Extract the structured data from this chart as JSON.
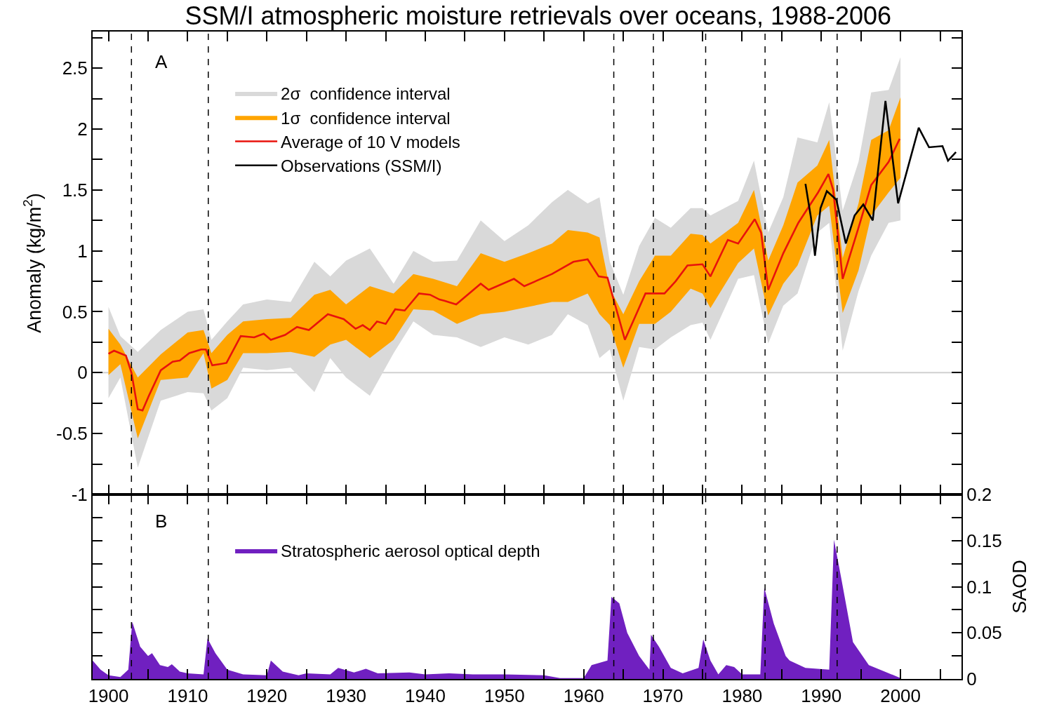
{
  "chart_data": [
    {
      "type": "line",
      "title": "SSM/I atmospheric moisture retrievals over oceans, 1988-2006",
      "ylabel": "Anomaly (kg/m$^{2}$)",
      "annotations": [
        "A"
      ],
      "xlim": [
        1898,
        2007.7
      ],
      "xticks": [
        1900,
        {
          "value": 1905,
          "label": null
        },
        1910,
        {
          "value": 1915,
          "label": null
        },
        1920,
        {
          "value": 1925,
          "label": null
        },
        1930,
        {
          "value": 1935,
          "label": null
        },
        1940,
        {
          "value": 1945,
          "label": null
        },
        1950,
        {
          "value": 1955,
          "label": null
        },
        1960,
        {
          "value": 1965,
          "label": null
        },
        1970,
        {
          "value": 1975,
          "label": null
        },
        1980,
        {
          "value": 1985,
          "label": null
        },
        1990,
        {
          "value": 1995,
          "label": null
        },
        2000,
        {
          "value": 2005,
          "label": null
        }
      ],
      "ylim": [
        -1,
        2.8
      ],
      "yticks": [
        -1,
        {
          "value": -0.75,
          "label": null
        },
        -0.5,
        {
          "value": -0.25,
          "label": null
        },
        0,
        {
          "value": 0.25,
          "label": null
        },
        0.5,
        {
          "value": 0.75,
          "label": null
        },
        1,
        {
          "value": 1.25,
          "label": null
        },
        1.5,
        {
          "value": 1.75,
          "label": null
        },
        2,
        {
          "value": 2.25,
          "label": null
        },
        2.5,
        {
          "value": 2.75,
          "label": null
        }
      ],
      "tick_labels": "y",
      "grid": false,
      "legend": "top left",
      "line_style": "solid",
      "ref_lines": [
        {
          "axis": "y",
          "value": 0,
          "color": "#d0d0d0",
          "line_style": "solid"
        },
        {
          "axis": "x",
          "value": 1902.9,
          "color": "#000000",
          "line_style": "dashed"
        },
        {
          "axis": "x",
          "value": 1912.6,
          "color": "#000000",
          "line_style": "dashed"
        },
        {
          "axis": "x",
          "value": 1963.8,
          "color": "#000000",
          "line_style": "dashed"
        },
        {
          "axis": "x",
          "value": 1968.8,
          "color": "#000000",
          "line_style": "dashed"
        },
        {
          "axis": "x",
          "value": 1975.4,
          "color": "#000000",
          "line_style": "dashed"
        },
        {
          "axis": "x",
          "value": 1982.9,
          "color": "#000000",
          "line_style": "dashed"
        },
        {
          "axis": "x",
          "value": 1992.0,
          "color": "#000000",
          "line_style": "dashed"
        }
      ],
      "series": [
        {
          "name": "2σ  confidence interval",
          "type": "area",
          "color": "#d9d9d9",
          "x": [
            1900,
            1901.5,
            1903.7,
            1906.6,
            1910,
            1912,
            1913,
            1915,
            1917,
            1920,
            1923,
            1926,
            1928,
            1930,
            1933,
            1936,
            1938.5,
            1941,
            1944,
            1947,
            1950,
            1953,
            1956,
            1958,
            1960.5,
            1962,
            1963.3,
            1965,
            1967,
            1969,
            1971,
            1973.5,
            1975,
            1976,
            1979.5,
            1981.5,
            1983.3,
            1985.2,
            1987,
            1989.5,
            1991,
            1992.7,
            1994.7,
            1996.3,
            1998.5,
            2000
          ],
          "values": [
            null,
            null,
            null,
            null,
            null,
            null,
            null,
            null,
            null,
            null,
            null,
            null,
            null,
            null,
            null,
            null,
            null,
            null,
            null,
            null,
            null,
            null,
            null,
            null,
            null,
            null,
            null,
            null,
            null,
            null,
            null,
            null,
            null,
            null,
            null,
            null,
            null,
            null,
            null,
            null,
            null,
            null,
            null,
            null,
            null,
            null
          ],
          "lower": [
            -0.21,
            -0.04,
            -0.78,
            -0.23,
            -0.16,
            -0.17,
            -0.31,
            -0.21,
            0.04,
            0.02,
            0.04,
            -0.16,
            0.12,
            -0.04,
            -0.19,
            0.16,
            0.42,
            0.31,
            0.29,
            0.21,
            0.29,
            0.23,
            0.31,
            0.48,
            0.39,
            0.12,
            0.19,
            -0.23,
            0.21,
            0.19,
            0.29,
            0.39,
            0.41,
            0.27,
            0.77,
            0.8,
            0.24,
            0.55,
            0.65,
            1.15,
            1.23,
            0.18,
            0.67,
            0.96,
            1.23,
            1.25
          ],
          "upper": [
            0.54,
            0.3,
            0.17,
            0.35,
            0.5,
            0.52,
            0.27,
            0.42,
            0.56,
            0.6,
            0.58,
            0.91,
            0.79,
            0.92,
            1.02,
            0.73,
            1.0,
            0.91,
            0.92,
            1.25,
            1.08,
            1.21,
            1.4,
            1.5,
            1.39,
            1.44,
            0.91,
            0.64,
            1.04,
            1.27,
            1.19,
            1.35,
            1.35,
            1.29,
            1.41,
            1.74,
            1.15,
            1.44,
            1.93,
            1.89,
            2.22,
            1.33,
            1.73,
            2.3,
            2.32,
            2.59
          ]
        },
        {
          "name": "1σ  confidence interval",
          "type": "area",
          "color": "#ffa500",
          "x": [
            1900,
            1901.5,
            1903.7,
            1906.6,
            1910,
            1912,
            1913,
            1915,
            1917,
            1920,
            1923,
            1926,
            1928,
            1930,
            1933,
            1936,
            1938.5,
            1941,
            1944,
            1947,
            1950,
            1953,
            1956,
            1958,
            1960.5,
            1962,
            1963.3,
            1965,
            1967,
            1969,
            1971,
            1973.5,
            1975,
            1976,
            1979.5,
            1981.5,
            1983.3,
            1985.2,
            1987,
            1989.5,
            1991,
            1992.7,
            1994.7,
            1996.3,
            1998.5,
            2000
          ],
          "values": [
            null,
            null,
            null,
            null,
            null,
            null,
            null,
            null,
            null,
            null,
            null,
            null,
            null,
            null,
            null,
            null,
            null,
            null,
            null,
            null,
            null,
            null,
            null,
            null,
            null,
            null,
            null,
            null,
            null,
            null,
            null,
            null,
            null,
            null,
            null,
            null,
            null,
            null,
            null,
            null,
            null,
            null,
            null,
            null,
            null,
            null
          ],
          "lower": [
            -0.02,
            0.07,
            -0.54,
            -0.06,
            -0.04,
            0.16,
            -0.13,
            -0.06,
            0.16,
            0.16,
            0.17,
            0.13,
            0.23,
            0.27,
            0.12,
            0.27,
            0.52,
            0.51,
            0.4,
            0.48,
            0.5,
            0.54,
            0.58,
            0.58,
            0.65,
            0.48,
            0.39,
            0.04,
            0.4,
            0.4,
            0.5,
            0.69,
            0.65,
            0.53,
            0.9,
            1.02,
            0.47,
            0.73,
            0.88,
            1.29,
            1.37,
            0.49,
            0.84,
            1.29,
            1.48,
            1.6
          ],
          "upper": [
            0.36,
            0.23,
            -0.04,
            0.15,
            0.33,
            0.35,
            0.16,
            0.31,
            0.42,
            0.44,
            0.45,
            0.64,
            0.68,
            0.56,
            0.71,
            0.65,
            0.81,
            0.77,
            0.71,
            0.98,
            0.91,
            0.98,
            1.06,
            1.17,
            1.15,
            1.11,
            0.69,
            0.48,
            0.75,
            0.96,
            0.96,
            1.14,
            1.13,
            1.06,
            1.23,
            1.5,
            0.92,
            1.21,
            1.56,
            1.7,
            1.91,
            0.94,
            1.39,
            1.91,
            1.99,
            2.26
          ]
        },
        {
          "name": "Average of 10 V models",
          "color": "#e8120c",
          "x": [
            1900,
            1900.7,
            1902.2,
            1902.9,
            1903.7,
            1904.3,
            1905.1,
            1906.6,
            1908.1,
            1909,
            1910.2,
            1911.7,
            1912.3,
            1913.1,
            1914,
            1914.9,
            1916.7,
            1918.4,
            1919.6,
            1920.5,
            1922.3,
            1923.8,
            1925.3,
            1927.7,
            1929.7,
            1931.2,
            1932.1,
            1933,
            1933.9,
            1935,
            1936.2,
            1937.4,
            1939.2,
            1940.6,
            1941.8,
            1942.4,
            1943.9,
            1947,
            1948,
            1951.2,
            1952.5,
            1956,
            1958.7,
            1960.5,
            1961.9,
            1963,
            1964.3,
            1965.2,
            1966.5,
            1967.8,
            1970.2,
            1971.6,
            1973.1,
            1975,
            1976,
            1978.2,
            1979.5,
            1981.6,
            1982.4,
            1983.3,
            1985.2,
            1987.1,
            1989.6,
            1990.9,
            1991.5,
            1992.7,
            1994.7,
            1996.3,
            1998.5,
            1999.9
          ],
          "values": [
            0.155,
            0.18,
            0.14,
            0.0,
            -0.3,
            -0.31,
            -0.19,
            0.02,
            0.09,
            0.1,
            0.16,
            0.19,
            0.19,
            0.06,
            0.07,
            0.08,
            0.3,
            0.29,
            0.32,
            0.27,
            0.31,
            0.375,
            0.35,
            0.48,
            0.44,
            0.36,
            0.39,
            0.35,
            0.42,
            0.4,
            0.52,
            0.51,
            0.65,
            0.64,
            0.6,
            0.59,
            0.56,
            0.73,
            0.68,
            0.77,
            0.71,
            0.81,
            0.91,
            0.93,
            0.79,
            0.78,
            0.48,
            0.27,
            0.46,
            0.65,
            0.65,
            0.75,
            0.88,
            0.89,
            0.79,
            1.09,
            1.06,
            1.26,
            1.15,
            0.68,
            0.98,
            1.23,
            1.48,
            1.63,
            1.5,
            0.77,
            1.19,
            1.54,
            1.73,
            1.92
          ]
        },
        {
          "name": "Observations (SSM/I)",
          "color": "#000000",
          "x": [
            1988.0,
            1988.7,
            1989.2,
            1989.9,
            1990.7,
            1991.9,
            1993.1,
            1994.2,
            1995.3,
            1996.5,
            1998.1,
            1999.7,
            2002.3,
            2003.6,
            2005.3,
            2006.0,
            2007.0
          ],
          "values": [
            1.55,
            1.27,
            0.96,
            1.35,
            1.49,
            1.42,
            1.06,
            1.29,
            1.38,
            1.25,
            2.23,
            1.39,
            2.01,
            1.85,
            1.86,
            1.74,
            1.81
          ]
        }
      ]
    },
    {
      "type": "area",
      "y2label": "SAOD",
      "annotations": [
        "B"
      ],
      "xlim": [
        1898,
        2007.7
      ],
      "xticks": [
        1900,
        {
          "value": 1905,
          "label": null
        },
        1910,
        {
          "value": 1915,
          "label": null
        },
        1920,
        {
          "value": 1925,
          "label": null
        },
        1930,
        {
          "value": 1935,
          "label": null
        },
        1940,
        {
          "value": 1945,
          "label": null
        },
        1950,
        {
          "value": 1955,
          "label": null
        },
        1960,
        {
          "value": 1965,
          "label": null
        },
        1970,
        {
          "value": 1975,
          "label": null
        },
        1980,
        {
          "value": 1985,
          "label": null
        },
        1990,
        {
          "value": 1995,
          "label": null
        },
        2000,
        {
          "value": 2005,
          "label": null
        }
      ],
      "y2lim": [
        0,
        0.2
      ],
      "y2ticks": [
        0,
        {
          "value": 0.025,
          "label": null
        },
        0.05,
        {
          "value": 0.075,
          "label": null
        },
        0.1,
        {
          "value": 0.125,
          "label": null
        },
        0.15,
        {
          "value": 0.175,
          "label": null
        },
        0.2
      ],
      "grid": false,
      "legend": "top left",
      "ref_lines": [
        {
          "axis": "x",
          "value": 1902.9,
          "color": "#000000",
          "line_style": "dashed"
        },
        {
          "axis": "x",
          "value": 1912.6,
          "color": "#000000",
          "line_style": "dashed"
        },
        {
          "axis": "x",
          "value": 1963.8,
          "color": "#000000",
          "line_style": "dashed"
        },
        {
          "axis": "x",
          "value": 1968.8,
          "color": "#000000",
          "line_style": "dashed"
        },
        {
          "axis": "x",
          "value": 1975.4,
          "color": "#000000",
          "line_style": "dashed"
        },
        {
          "axis": "x",
          "value": 1982.9,
          "color": "#000000",
          "line_style": "dashed"
        },
        {
          "axis": "x",
          "value": 1992.0,
          "color": "#000000",
          "line_style": "dashed"
        }
      ],
      "series": [
        {
          "name": "Stratospheric aerosol optical depth",
          "color": "#7020c0",
          "axis": "y2",
          "x": [
            1898,
            1899,
            1900,
            1901.5,
            1902.5,
            1903,
            1904,
            1905,
            1905.5,
            1906.5,
            1907.5,
            1908,
            1909,
            1910,
            1912,
            1912.5,
            1913.5,
            1915,
            1917,
            1920,
            1920.5,
            1922,
            1924,
            1925,
            1928,
            1929,
            1931,
            1932.5,
            1934,
            1938,
            1940,
            1943,
            1946,
            1950,
            1955,
            1957,
            1960,
            1961,
            1963,
            1963.5,
            1964.5,
            1965.5,
            1967,
            1968.3,
            1968.5,
            1969.5,
            1971,
            1972.5,
            1974.5,
            1975.1,
            1976,
            1977,
            1978,
            1979,
            1980,
            1982.3,
            1982.8,
            1984,
            1985.5,
            1986,
            1988,
            1991,
            1991.6,
            1992.5,
            1994,
            1996,
            1998,
            2000
          ],
          "values": [
            0.02,
            0.01,
            0.004,
            0.002,
            0.01,
            0.062,
            0.035,
            0.025,
            0.028,
            0.015,
            0.013,
            0.016,
            0.008,
            0.006,
            0.005,
            0.044,
            0.028,
            0.01,
            0.005,
            0.004,
            0.02,
            0.008,
            0.004,
            0.006,
            0.005,
            0.012,
            0.007,
            0.011,
            0.006,
            0.007,
            0.005,
            0.006,
            0.005,
            0.005,
            0.004,
            0.001,
            0.001,
            0.015,
            0.02,
            0.089,
            0.082,
            0.05,
            0.025,
            0.01,
            0.048,
            0.035,
            0.012,
            0.006,
            0.012,
            0.043,
            0.02,
            0.005,
            0.015,
            0.013,
            0.005,
            0.005,
            0.099,
            0.06,
            0.025,
            0.02,
            0.012,
            0.01,
            0.151,
            0.11,
            0.04,
            0.015,
            0.008,
            0.001
          ]
        }
      ]
    }
  ]
}
